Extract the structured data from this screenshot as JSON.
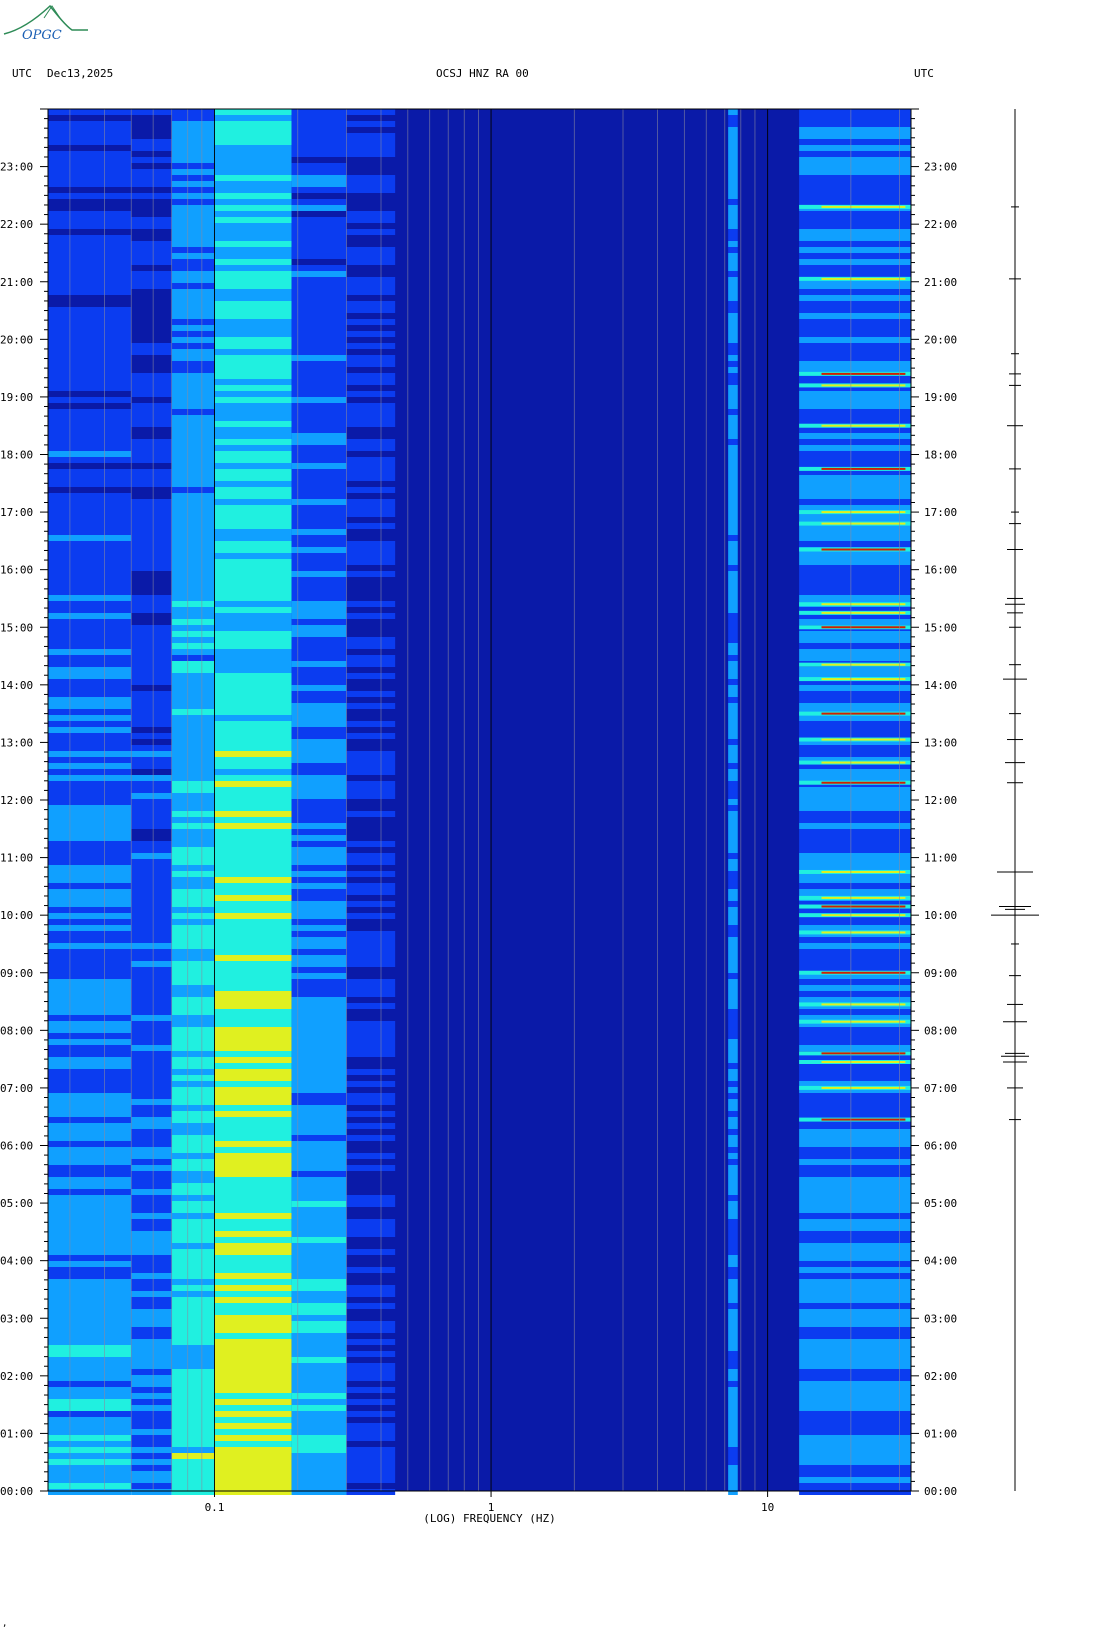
{
  "logo": {
    "text": "OPGC",
    "color_arc": "#2e8b57",
    "color_text": "#1a5fb4"
  },
  "header": {
    "left_tz": "UTC",
    "date": "Dec13,2025",
    "station": "OCSJ HNZ RA 00",
    "right_tz": "UTC"
  },
  "footer": {
    "mark": ","
  },
  "chart_data": {
    "type": "heatmap",
    "title": "OCSJ HNZ RA 00",
    "xlabel": "(LOG) FREQUENCY (HZ)",
    "ylabel": "",
    "x_scale": "log",
    "xlim": [
      0.025,
      33
    ],
    "x_ticks": [
      {
        "value": 0.1,
        "label": "0.1"
      },
      {
        "value": 1,
        "label": "1"
      },
      {
        "value": 10,
        "label": "10"
      }
    ],
    "y_ticks_left": [
      "23:00",
      "22:00",
      "21:00",
      "20:00",
      "19:00",
      "18:00",
      "17:00",
      "16:00",
      "15:00",
      "14:00",
      "13:00",
      "12:00",
      "11:00",
      "10:00",
      "09:00",
      "08:00",
      "07:00",
      "06:00",
      "05:00",
      "04:00",
      "03:00",
      "02:00",
      "01:00",
      "00:00"
    ],
    "y_ticks_right": [
      "23:00",
      "22:00",
      "21:00",
      "20:00",
      "19:00",
      "18:00",
      "17:00",
      "16:00",
      "15:00",
      "14:00",
      "13:00",
      "12:00",
      "11:00",
      "10:00",
      "09:00",
      "08:00",
      "07:00",
      "06:00",
      "05:00",
      "04:00",
      "03:00",
      "02:00",
      "01:00",
      "00:00"
    ],
    "y_hours": [
      23,
      22,
      21,
      20,
      19,
      18,
      17,
      16,
      15,
      14,
      13,
      12,
      11,
      10,
      9,
      8,
      7,
      6,
      5,
      4,
      3,
      2,
      1,
      0
    ],
    "ylim_hours": [
      0,
      24
    ],
    "colormap": [
      "#0a1aa8",
      "#0b3cf0",
      "#10a0ff",
      "#20f0e0",
      "#e0f020",
      "#d02000"
    ],
    "background_color": "#0a1aa8",
    "energy_bands": [
      {
        "f_min": 0.025,
        "f_max": 0.05,
        "level": 0.28
      },
      {
        "f_min": 0.05,
        "f_max": 0.07,
        "level": 0.2
      },
      {
        "f_min": 0.07,
        "f_max": 0.1,
        "level": 0.45
      },
      {
        "f_min": 0.1,
        "f_max": 0.19,
        "level": 0.62
      },
      {
        "f_min": 0.19,
        "f_max": 0.3,
        "level": 0.32
      },
      {
        "f_min": 0.3,
        "f_max": 0.45,
        "level": 0.12
      },
      {
        "f_min": 7.2,
        "f_max": 7.8,
        "level": 0.35
      },
      {
        "f_min": 13,
        "f_max": 33,
        "level": 0.3
      }
    ],
    "event_hours": [
      6.45,
      7.0,
      7.45,
      7.6,
      8.15,
      8.45,
      9.0,
      9.7,
      10.0,
      10.15,
      10.3,
      10.75,
      12.3,
      12.65,
      13.05,
      13.5,
      14.1,
      14.35,
      15.0,
      15.25,
      15.4,
      16.35,
      16.8,
      17.0,
      17.75,
      18.5,
      19.2,
      19.4,
      21.05,
      22.3
    ],
    "event_freq_range": [
      13,
      33
    ]
  },
  "seismogram": {
    "event_hours": [
      6.45,
      7.0,
      7.45,
      7.55,
      7.6,
      8.15,
      8.45,
      8.95,
      9.5,
      10.0,
      10.1,
      10.15,
      10.75,
      12.3,
      12.65,
      13.05,
      13.5,
      14.1,
      14.35,
      15.0,
      15.25,
      15.4,
      15.5,
      16.35,
      16.8,
      17.0,
      17.75,
      18.5,
      19.2,
      19.4,
      19.75,
      21.05,
      22.3
    ],
    "event_amplitudes": [
      3,
      4,
      6,
      7,
      5,
      6,
      4,
      3,
      2,
      12,
      5,
      8,
      9,
      4,
      5,
      4,
      3,
      6,
      3,
      3,
      4,
      5,
      4,
      4,
      3,
      2,
      3,
      4,
      3,
      3,
      2,
      3,
      2
    ]
  }
}
